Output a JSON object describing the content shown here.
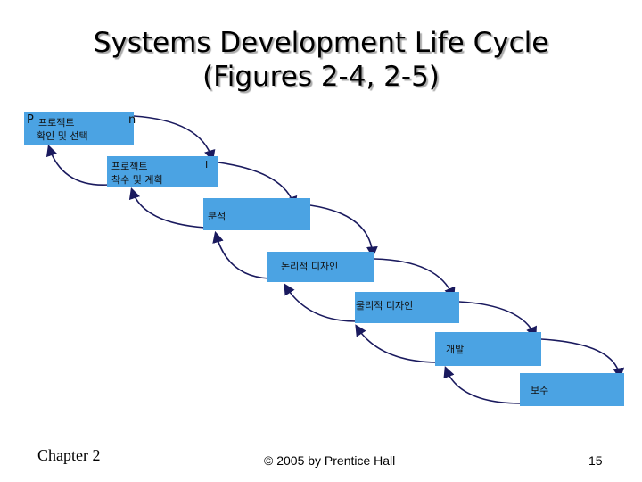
{
  "header": {
    "title": [
      "Systems Development Life Cycle",
      "(Figures 2-4, 2-5)"
    ]
  },
  "phases": [
    {
      "lines": [
        "P",
        "프로젝트",
        "n",
        "확인 및 선택"
      ]
    },
    {
      "lines": [
        "프로젝트",
        "I",
        "착수 및 계획"
      ]
    },
    {
      "lines": [
        "분석"
      ]
    },
    {
      "lines": [
        "논리적 디자인"
      ]
    },
    {
      "lines": [
        "물리적 디자인"
      ]
    },
    {
      "lines": [
        "개발"
      ]
    },
    {
      "lines": [
        "보수"
      ]
    }
  ],
  "footer": {
    "chapter": "Chapter 2",
    "copyright": "© 2005 by Prentice Hall",
    "page": "15"
  }
}
